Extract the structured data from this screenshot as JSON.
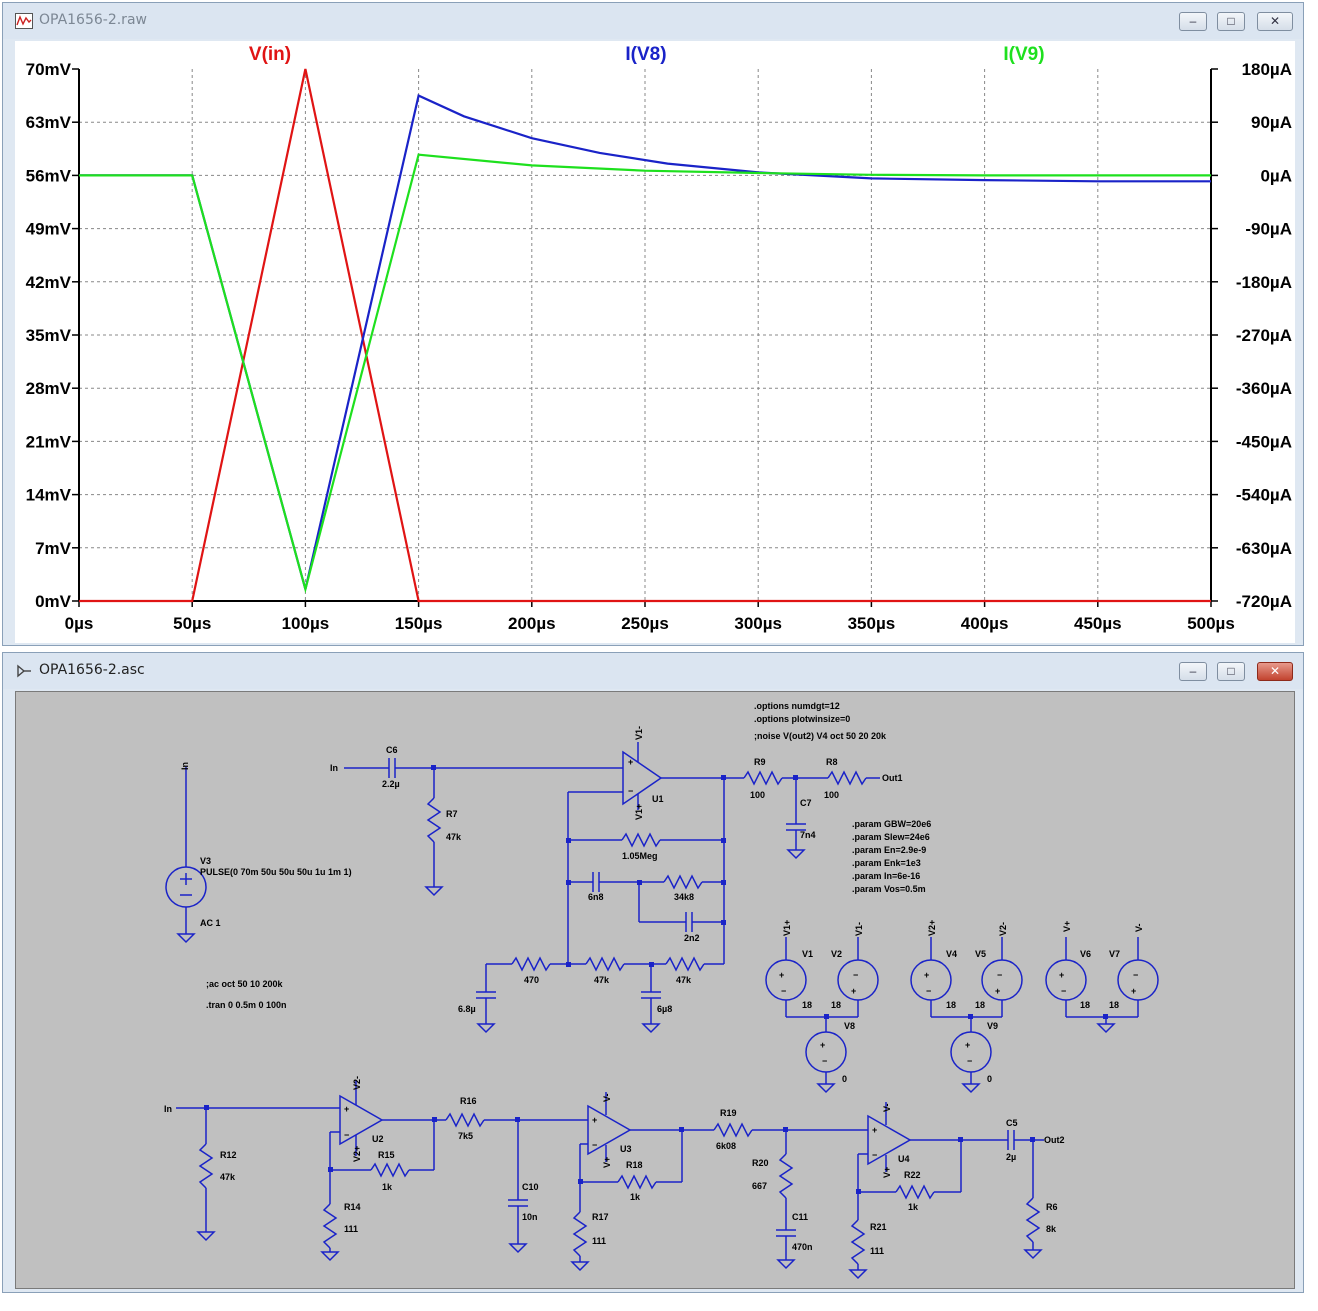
{
  "waveform_window": {
    "title": "OPA1656-2.raw",
    "icon": "waveform-app-icon",
    "buttons": {
      "minimize": "minimize-icon",
      "maximize": "maximize-icon",
      "close": "close-icon"
    }
  },
  "schematic_window": {
    "title": "OPA1656-2.asc",
    "icon": "schematic-app-icon",
    "buttons": {
      "minimize": "minimize-icon",
      "maximize": "maximize-icon",
      "close": "close-icon"
    }
  },
  "chart_data": {
    "type": "line",
    "x_tick_labels": [
      "0µs",
      "50µs",
      "100µs",
      "150µs",
      "200µs",
      "250µs",
      "300µs",
      "350µs",
      "400µs",
      "450µs",
      "500µs"
    ],
    "y_left_tick_labels": [
      "70mV",
      "63mV",
      "56mV",
      "49mV",
      "42mV",
      "35mV",
      "28mV",
      "21mV",
      "14mV",
      "7mV",
      "0mV"
    ],
    "y_right_tick_labels": [
      "180µA",
      "90µA",
      "0µA",
      "-90µA",
      "-180µA",
      "-270µA",
      "-360µA",
      "-450µA",
      "-540µA",
      "-630µA",
      "-720µA"
    ],
    "xlim": [
      0,
      500
    ],
    "ylim_left": [
      0,
      70
    ],
    "ylim_right": [
      -720,
      180
    ],
    "grid": true,
    "series": [
      {
        "name": "V(in)",
        "color": "#e01414",
        "axis": "left",
        "x": [
          0,
          50,
          100,
          150,
          500
        ],
        "y": [
          0,
          0,
          70,
          0,
          0
        ]
      },
      {
        "name": "I(V8)",
        "color": "#1a23c8",
        "axis": "right",
        "x": [
          0,
          50,
          100,
          150,
          170,
          200,
          230,
          260,
          300,
          350,
          400,
          450,
          500
        ],
        "y": [
          0,
          0,
          -700,
          135,
          100,
          63,
          38,
          20,
          5,
          -5,
          -8,
          -10,
          -10
        ]
      },
      {
        "name": "I(V9)",
        "color": "#1ee01e",
        "axis": "right",
        "x": [
          0,
          50,
          100,
          150,
          200,
          250,
          300,
          350,
          400,
          500
        ],
        "y": [
          0,
          0,
          -700,
          35,
          17,
          8,
          4,
          1,
          0,
          0
        ]
      }
    ]
  },
  "schematic": {
    "net_labels": {
      "in_v3": "In",
      "in_c6": "In",
      "in_r12": "In",
      "out1": "Out1",
      "out2": "Out2"
    },
    "components": {
      "V3": {
        "ref": "V3",
        "value": "PULSE(0 70m 50u 50u 50u 1u 1m 1)",
        "ac": "AC 1"
      },
      "C6": {
        "ref": "C6",
        "value": "2.2µ"
      },
      "R7": {
        "ref": "R7",
        "value": "47k"
      },
      "U1": {
        "ref": "U1",
        "vp": "V1+",
        "vm": "V1-"
      },
      "R9": {
        "ref": "R9",
        "value": "100"
      },
      "R8": {
        "ref": "R8",
        "value": "100"
      },
      "C7": {
        "ref": "C7",
        "value": "7n4"
      },
      "R_1M05": {
        "value": "1.05Meg"
      },
      "C_6n8": {
        "value": "6n8"
      },
      "R_34k8": {
        "value": "34k8"
      },
      "C_2n2": {
        "value": "2n2"
      },
      "R_470": {
        "value": "470"
      },
      "R_47k_a": {
        "value": "47k"
      },
      "R_47k_b": {
        "value": "47k"
      },
      "C_6u8_a": {
        "value": "6.8µ"
      },
      "C_6u8_b": {
        "value": "6µ8"
      },
      "V1": {
        "ref": "V1",
        "value": "18",
        "net": "V1+"
      },
      "V2": {
        "ref": "V2",
        "value": "18",
        "net": "V1-"
      },
      "V8": {
        "ref": "V8",
        "value": "0"
      },
      "V4": {
        "ref": "V4",
        "value": "18",
        "net": "V2+"
      },
      "V5": {
        "ref": "V5",
        "value": "18",
        "net": "V2-"
      },
      "V9": {
        "ref": "V9",
        "value": "0"
      },
      "V6": {
        "ref": "V6",
        "value": "18",
        "net": "V+"
      },
      "V7": {
        "ref": "V7",
        "value": "18",
        "net": "V-"
      },
      "R12": {
        "ref": "R12",
        "value": "47k"
      },
      "U2": {
        "ref": "U2",
        "vp": "V2+",
        "vm": "V2-"
      },
      "R15": {
        "ref": "R15",
        "value": "1k"
      },
      "R14": {
        "ref": "R14",
        "value": "111"
      },
      "R16": {
        "ref": "R16",
        "value": "7k5"
      },
      "C10": {
        "ref": "C10",
        "value": "10n"
      },
      "U3": {
        "ref": "U3",
        "vp": "V+",
        "vm": "V-"
      },
      "R18": {
        "ref": "R18",
        "value": "1k"
      },
      "R17": {
        "ref": "R17",
        "value": "111"
      },
      "R19": {
        "ref": "R19",
        "value": "6k08"
      },
      "R20": {
        "ref": "R20",
        "value": "667"
      },
      "C11": {
        "ref": "C11",
        "value": "470n"
      },
      "U4": {
        "ref": "U4",
        "vp": "V+",
        "vm": "V-"
      },
      "R22": {
        "ref": "R22",
        "value": "1k"
      },
      "R21": {
        "ref": "R21",
        "value": "111"
      },
      "C5": {
        "ref": "C5",
        "value": "2µ"
      },
      "R6": {
        "ref": "R6",
        "value": "8k"
      }
    },
    "directives": {
      "options1": ".options numdgt=12",
      "options2": ".options plotwinsize=0",
      "noise": ";noise V(out2) V4 oct 50 20 20k",
      "ac": ";ac oct 50 10 200k",
      "tran": ".tran 0 0.5m 0 100n",
      "params": [
        ".param GBW=20e6",
        ".param Slew=24e6",
        ".param En=2.9e-9",
        ".param Enk=1e3",
        ".param In=6e-16",
        ".param Vos=0.5m"
      ]
    }
  }
}
